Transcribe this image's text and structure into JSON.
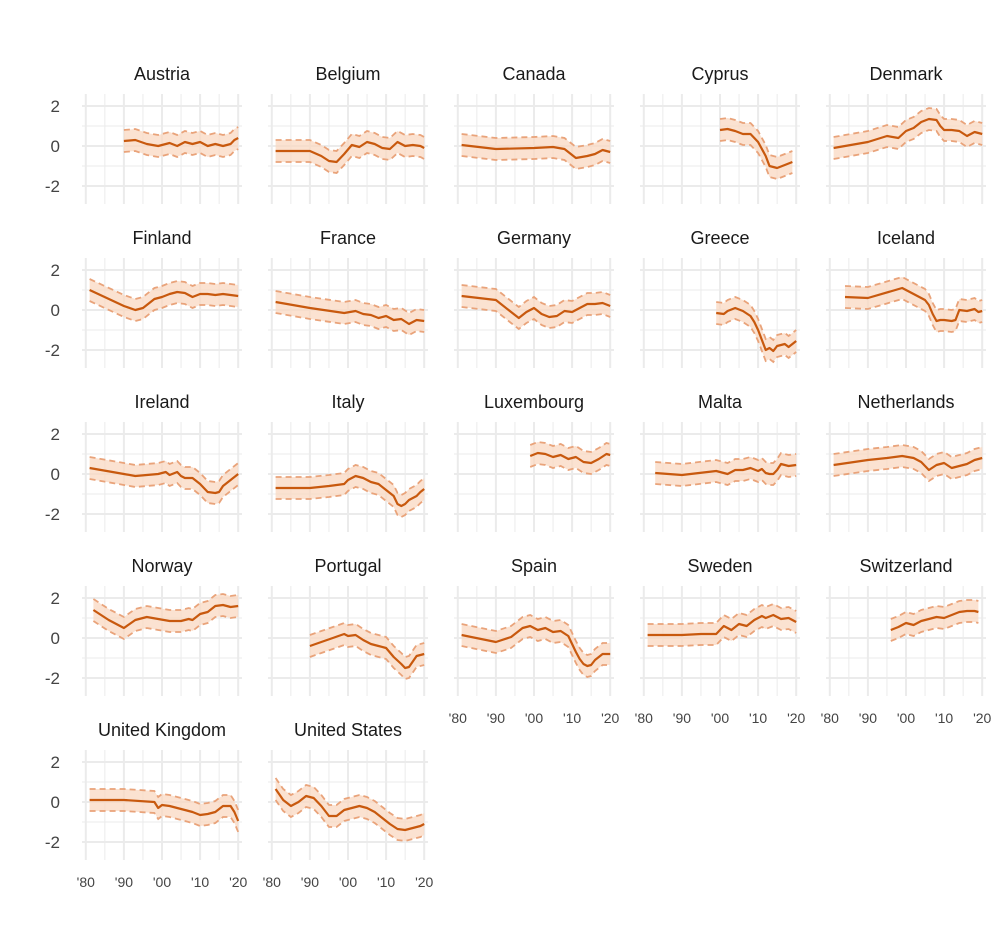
{
  "colors": {
    "line": "#c8590e",
    "band": "#f9d8c1",
    "band_edge": "#e9a37a",
    "grid": "#ebebeb"
  },
  "chart_data": {
    "type": "line",
    "layout": "small-multiples",
    "ncol": 5,
    "ylim": [
      -2.9,
      2.6
    ],
    "xlim": [
      1979,
      2021
    ],
    "yticks": [
      2,
      0,
      -2
    ],
    "ytick_labels": [
      "2",
      "0",
      "-2"
    ],
    "xticks": [
      1980,
      1990,
      2000,
      2010,
      2020
    ],
    "xtick_labels": [
      "'80",
      "'90",
      "'00",
      "'10",
      "'20"
    ],
    "band_width": 0.55,
    "panels": [
      {
        "title": "Austria",
        "x": [
          1990,
          1993,
          1996,
          1999,
          2002,
          2004,
          2006,
          2008,
          2010,
          2012,
          2014,
          2016,
          2018,
          2019,
          2020
        ],
        "y": [
          0.25,
          0.3,
          0.1,
          0.0,
          0.15,
          0.0,
          0.2,
          0.1,
          0.2,
          0.0,
          0.1,
          0.0,
          0.1,
          0.3,
          0.4
        ]
      },
      {
        "title": "Belgium",
        "x": [
          1981,
          1990,
          1993,
          1995,
          1997,
          1999,
          2001,
          2003,
          2005,
          2007,
          2009,
          2011,
          2013,
          2015,
          2017,
          2019,
          2020
        ],
        "y": [
          -0.25,
          -0.25,
          -0.5,
          -0.75,
          -0.8,
          -0.4,
          0.05,
          -0.05,
          0.2,
          0.1,
          -0.1,
          -0.15,
          0.2,
          0.0,
          0.05,
          0.0,
          -0.1
        ]
      },
      {
        "title": "Canada",
        "x": [
          1981,
          1990,
          2000,
          2005,
          2008,
          2009,
          2011,
          2014,
          2016,
          2018,
          2020
        ],
        "y": [
          0.05,
          -0.15,
          -0.1,
          -0.05,
          -0.15,
          -0.3,
          -0.6,
          -0.5,
          -0.4,
          -0.2,
          -0.3
        ]
      },
      {
        "title": "Cyprus",
        "x": [
          2000,
          2002,
          2004,
          2006,
          2008,
          2009,
          2010,
          2012,
          2013,
          2015,
          2017,
          2019
        ],
        "y": [
          0.8,
          0.85,
          0.75,
          0.6,
          0.6,
          0.4,
          0.2,
          -0.5,
          -1.0,
          -1.1,
          -0.95,
          -0.8
        ]
      },
      {
        "title": "Denmark",
        "x": [
          1981,
          1990,
          1995,
          1998,
          2000,
          2002,
          2004,
          2006,
          2008,
          2009,
          2010,
          2012,
          2014,
          2016,
          2018,
          2020
        ],
        "y": [
          -0.1,
          0.2,
          0.5,
          0.4,
          0.75,
          0.9,
          1.2,
          1.35,
          1.3,
          1.0,
          0.8,
          0.8,
          0.75,
          0.5,
          0.7,
          0.6
        ]
      },
      {
        "title": "Finland",
        "x": [
          1981,
          1990,
          1993,
          1995,
          1998,
          2000,
          2002,
          2004,
          2006,
          2008,
          2010,
          2012,
          2014,
          2016,
          2018,
          2020
        ],
        "y": [
          1.0,
          0.2,
          0.0,
          0.1,
          0.55,
          0.65,
          0.8,
          0.9,
          0.85,
          0.65,
          0.8,
          0.8,
          0.75,
          0.8,
          0.75,
          0.7
        ]
      },
      {
        "title": "France",
        "x": [
          1981,
          1990,
          1999,
          2002,
          2004,
          2006,
          2008,
          2010,
          2012,
          2014,
          2016,
          2018,
          2020
        ],
        "y": [
          0.4,
          0.1,
          -0.15,
          -0.05,
          -0.2,
          -0.25,
          -0.4,
          -0.3,
          -0.5,
          -0.45,
          -0.7,
          -0.5,
          -0.55
        ]
      },
      {
        "title": "Germany",
        "x": [
          1981,
          1990,
          1994,
          1996,
          1998,
          2000,
          2002,
          2004,
          2006,
          2008,
          2010,
          2012,
          2014,
          2016,
          2018,
          2020
        ],
        "y": [
          0.7,
          0.5,
          -0.1,
          -0.4,
          -0.1,
          0.1,
          -0.2,
          -0.35,
          -0.3,
          -0.05,
          -0.1,
          0.1,
          0.3,
          0.3,
          0.35,
          0.2
        ]
      },
      {
        "title": "Greece",
        "x": [
          1999,
          2001,
          2002,
          2004,
          2006,
          2008,
          2009,
          2010,
          2011,
          2012,
          2013,
          2014,
          2015,
          2016,
          2017,
          2018,
          2019,
          2020
        ],
        "y": [
          -0.15,
          -0.2,
          -0.05,
          0.1,
          -0.05,
          -0.3,
          -0.6,
          -1.0,
          -1.5,
          -2.0,
          -1.9,
          -2.05,
          -1.8,
          -1.75,
          -1.7,
          -1.85,
          -1.7,
          -1.55
        ]
      },
      {
        "title": "Iceland",
        "x": [
          1984,
          1990,
          1999,
          2001,
          2003,
          2005,
          2006,
          2007,
          2008,
          2009,
          2010,
          2012,
          2013,
          2014,
          2016,
          2018,
          2019,
          2020
        ],
        "y": [
          0.65,
          0.6,
          1.1,
          0.9,
          0.7,
          0.5,
          0.25,
          -0.2,
          -0.55,
          -0.5,
          -0.5,
          -0.55,
          -0.5,
          0.0,
          -0.05,
          0.05,
          -0.1,
          -0.05
        ]
      },
      {
        "title": "Ireland",
        "x": [
          1981,
          1990,
          1993,
          1996,
          1999,
          2001,
          2002,
          2004,
          2005,
          2006,
          2008,
          2010,
          2012,
          2014,
          2015,
          2016,
          2018,
          2020
        ],
        "y": [
          0.3,
          0.0,
          -0.1,
          -0.05,
          0.0,
          0.1,
          -0.05,
          0.1,
          -0.1,
          -0.2,
          -0.2,
          -0.5,
          -0.9,
          -0.95,
          -0.9,
          -0.6,
          -0.3,
          0.0
        ]
      },
      {
        "title": "Italy",
        "x": [
          1981,
          1990,
          1995,
          1999,
          2000,
          2002,
          2004,
          2006,
          2008,
          2010,
          2012,
          2013,
          2014,
          2015,
          2016,
          2018,
          2019,
          2020
        ],
        "y": [
          -0.7,
          -0.7,
          -0.6,
          -0.5,
          -0.3,
          -0.1,
          -0.2,
          -0.4,
          -0.5,
          -0.8,
          -1.1,
          -1.5,
          -1.6,
          -1.5,
          -1.3,
          -1.1,
          -0.9,
          -0.75
        ]
      },
      {
        "title": "Luxembourg",
        "x": [
          1999,
          2001,
          2003,
          2005,
          2007,
          2009,
          2011,
          2013,
          2015,
          2017,
          2019,
          2020
        ],
        "y": [
          0.9,
          1.05,
          1.0,
          0.85,
          0.95,
          0.75,
          0.85,
          0.6,
          0.55,
          0.75,
          1.0,
          0.95
        ]
      },
      {
        "title": "Malta",
        "x": [
          1983,
          1990,
          1999,
          2002,
          2004,
          2006,
          2008,
          2010,
          2011,
          2012,
          2013,
          2014,
          2015,
          2016,
          2017,
          2018,
          2020
        ],
        "y": [
          0.05,
          -0.05,
          0.15,
          0.0,
          0.2,
          0.2,
          0.3,
          0.15,
          0.25,
          0.05,
          0.0,
          0.0,
          0.2,
          0.5,
          0.45,
          0.4,
          0.45
        ]
      },
      {
        "title": "Netherlands",
        "x": [
          1981,
          1990,
          1995,
          1999,
          2002,
          2004,
          2006,
          2008,
          2010,
          2012,
          2014,
          2016,
          2018,
          2020
        ],
        "y": [
          0.45,
          0.7,
          0.8,
          0.9,
          0.8,
          0.6,
          0.2,
          0.45,
          0.55,
          0.3,
          0.4,
          0.5,
          0.7,
          0.8
        ]
      },
      {
        "title": "Norway",
        "x": [
          1982,
          1986,
          1990,
          1993,
          1996,
          1999,
          2002,
          2005,
          2007,
          2008,
          2010,
          2012,
          2014,
          2016,
          2018,
          2020
        ],
        "y": [
          1.4,
          0.9,
          0.5,
          0.9,
          1.05,
          0.95,
          0.85,
          0.85,
          0.95,
          0.9,
          1.2,
          1.3,
          1.6,
          1.65,
          1.55,
          1.6
        ]
      },
      {
        "title": "Portugal",
        "x": [
          1990,
          1993,
          1996,
          1999,
          2000,
          2002,
          2004,
          2006,
          2008,
          2010,
          2012,
          2014,
          2015,
          2016,
          2018,
          2020
        ],
        "y": [
          -0.4,
          -0.2,
          0.0,
          0.2,
          0.1,
          0.15,
          -0.1,
          -0.3,
          -0.4,
          -0.5,
          -0.95,
          -1.3,
          -1.5,
          -1.45,
          -0.9,
          -0.8
        ]
      },
      {
        "title": "Spain",
        "x": [
          1981,
          1990,
          1994,
          1997,
          1999,
          2001,
          2003,
          2005,
          2007,
          2009,
          2010,
          2011,
          2012,
          2013,
          2014,
          2015,
          2016,
          2018,
          2020
        ],
        "y": [
          0.15,
          -0.2,
          0.05,
          0.5,
          0.6,
          0.4,
          0.5,
          0.3,
          0.35,
          0.1,
          -0.3,
          -0.7,
          -1.05,
          -1.3,
          -1.4,
          -1.35,
          -1.1,
          -0.8,
          -0.8
        ]
      },
      {
        "title": "Sweden",
        "x": [
          1981,
          1990,
          1995,
          1999,
          2001,
          2003,
          2005,
          2007,
          2009,
          2011,
          2012,
          2014,
          2016,
          2018,
          2020
        ],
        "y": [
          0.15,
          0.15,
          0.2,
          0.2,
          0.6,
          0.4,
          0.7,
          0.6,
          0.9,
          1.1,
          1.0,
          1.15,
          0.95,
          1.0,
          0.8
        ]
      },
      {
        "title": "Switzerland",
        "x": [
          1996,
          1998,
          2000,
          2002,
          2004,
          2006,
          2008,
          2010,
          2012,
          2014,
          2016,
          2018,
          2019
        ],
        "y": [
          0.4,
          0.55,
          0.75,
          0.65,
          0.85,
          0.95,
          1.05,
          1.0,
          1.15,
          1.3,
          1.35,
          1.35,
          1.3
        ]
      },
      {
        "title": "United Kingdom",
        "x": [
          1981,
          1990,
          1998,
          1999,
          2000,
          2002,
          2004,
          2006,
          2008,
          2010,
          2012,
          2014,
          2016,
          2018,
          2019,
          2020
        ],
        "y": [
          0.1,
          0.1,
          0.0,
          -0.3,
          -0.15,
          -0.2,
          -0.3,
          -0.4,
          -0.5,
          -0.65,
          -0.6,
          -0.5,
          -0.2,
          -0.2,
          -0.5,
          -0.95
        ]
      },
      {
        "title": "United States",
        "x": [
          1981,
          1983,
          1985,
          1987,
          1989,
          1991,
          1993,
          1995,
          1997,
          1999,
          2001,
          2003,
          2005,
          2007,
          2009,
          2011,
          2013,
          2015,
          2017,
          2019,
          2020
        ],
        "y": [
          0.65,
          0.1,
          -0.2,
          0.0,
          0.3,
          0.2,
          -0.2,
          -0.7,
          -0.7,
          -0.4,
          -0.3,
          -0.2,
          -0.3,
          -0.5,
          -0.8,
          -1.1,
          -1.35,
          -1.4,
          -1.3,
          -1.2,
          -1.1
        ]
      }
    ]
  }
}
